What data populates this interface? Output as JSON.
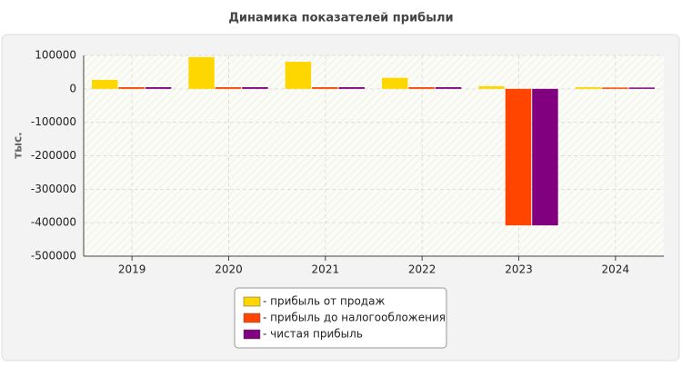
{
  "chart_data": {
    "type": "bar",
    "title": "Динамика показателей прибыли",
    "y_label": "тыс.",
    "categories": [
      "2019",
      "2020",
      "2021",
      "2022",
      "2023",
      "2024"
    ],
    "series": [
      {
        "name": "- прибыль от продаж",
        "color": "#ffd700",
        "values": [
          27000,
          95000,
          81000,
          33000,
          8000,
          5000
        ]
      },
      {
        "name": "- прибыль до налогообложения",
        "color": "#ff4500",
        "values": [
          5000,
          5000,
          5000,
          5000,
          -408000,
          4000
        ]
      },
      {
        "name": "- чистая прибыль",
        "color": "#800080",
        "values": [
          5000,
          5000,
          5000,
          5000,
          -408000,
          4000
        ]
      }
    ],
    "ylim": [
      -500000,
      100000
    ],
    "yticks": [
      100000,
      0,
      -100000,
      -200000,
      -300000,
      -400000,
      -500000
    ],
    "grid": true
  }
}
